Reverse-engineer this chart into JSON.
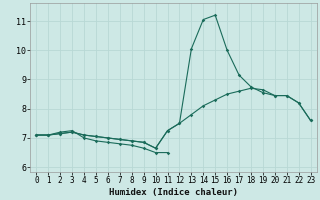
{
  "xlabel": "Humidex (Indice chaleur)",
  "bg_color": "#cde8e5",
  "grid_color": "#b8d8d5",
  "line_color": "#1a6b5a",
  "xlim": [
    -0.5,
    23.5
  ],
  "ylim": [
    5.85,
    11.6
  ],
  "yticks": [
    6,
    7,
    8,
    9,
    10,
    11
  ],
  "xticks": [
    0,
    1,
    2,
    3,
    4,
    5,
    6,
    7,
    8,
    9,
    10,
    11,
    12,
    13,
    14,
    15,
    16,
    17,
    18,
    19,
    20,
    21,
    22,
    23
  ],
  "line1_x": [
    0,
    1,
    2,
    3,
    4,
    5,
    6,
    7,
    8,
    9,
    10,
    11
  ],
  "line1_y": [
    7.1,
    7.1,
    7.2,
    7.25,
    7.0,
    6.9,
    6.85,
    6.8,
    6.75,
    6.65,
    6.5,
    6.5
  ],
  "line2_x": [
    0,
    1,
    2,
    3,
    4,
    5,
    6,
    7,
    8,
    9,
    10,
    11,
    12,
    13,
    14,
    15,
    16,
    17,
    18,
    19,
    20,
    21,
    22,
    23
  ],
  "line2_y": [
    7.1,
    7.1,
    7.15,
    7.2,
    7.1,
    7.05,
    7.0,
    6.95,
    6.9,
    6.85,
    6.65,
    7.25,
    7.5,
    10.05,
    11.05,
    11.2,
    10.0,
    9.15,
    8.75,
    8.55,
    8.45,
    8.45,
    8.2,
    7.6
  ],
  "line3_x": [
    0,
    1,
    2,
    3,
    4,
    5,
    6,
    7,
    8,
    9,
    10,
    11,
    12,
    13,
    14,
    15,
    16,
    17,
    18,
    19,
    20,
    21,
    22,
    23
  ],
  "line3_y": [
    7.1,
    7.1,
    7.15,
    7.2,
    7.1,
    7.05,
    7.0,
    6.95,
    6.9,
    6.85,
    6.65,
    7.25,
    7.5,
    7.8,
    8.1,
    8.3,
    8.5,
    8.6,
    8.7,
    8.65,
    8.45,
    8.45,
    8.2,
    7.6
  ],
  "tick_fontsize": 5.5,
  "xlabel_fontsize": 6.5
}
